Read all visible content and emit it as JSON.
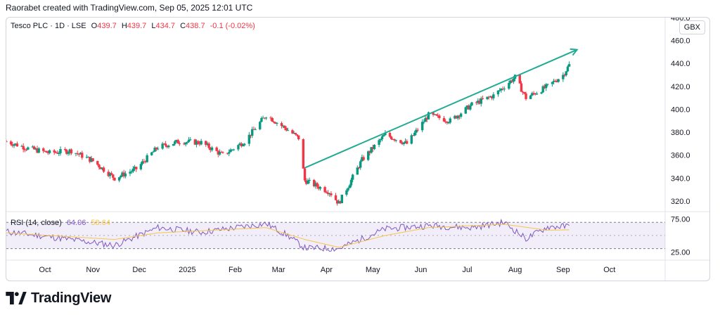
{
  "header": {
    "attribution": "Raorabet created with TradingView.com, Sep 05, 2025 12:01 UTC"
  },
  "legend": {
    "symbol": "Tesco PLC · 1D · LSE",
    "open_label": "O",
    "open": "439.7",
    "high_label": "H",
    "high": "439.7",
    "low_label": "L",
    "low": "434.7",
    "close_label": "C",
    "close": "438.7",
    "change": "-0.1 (-0.02%)"
  },
  "currency": "GBX",
  "rsi_legend": {
    "label": "RSI (14, close)",
    "rsi_value": "64.06",
    "ma_value": "58.64"
  },
  "footer": {
    "brand": "TradingView"
  },
  "colors": {
    "up": "#089981",
    "down": "#f23645",
    "trend": "#22ab94",
    "rsi": "#7e57c2",
    "rsi_ma": "#f7c548",
    "rsi_band": "#7e57c2"
  },
  "chart_data": [
    {
      "type": "candlestick",
      "title": "Tesco PLC · 1D · LSE",
      "x_tick_labels": [
        "Oct",
        "Nov",
        "Dec",
        "2025",
        "Feb",
        "Mar",
        "Apr",
        "May",
        "Jun",
        "Jul",
        "Aug",
        "Sep",
        "Oct"
      ],
      "y_tick_labels": [
        "320.0",
        "340.0",
        "360.0",
        "380.0",
        "400.0",
        "420.0",
        "440.0",
        "460.0",
        "480.0"
      ],
      "ylim": [
        312,
        480
      ],
      "grid": false,
      "close_series": [
        {
          "date": "2024-09-06",
          "close": 372
        },
        {
          "date": "2024-09-20",
          "close": 366
        },
        {
          "date": "2024-10-04",
          "close": 362
        },
        {
          "date": "2024-10-18",
          "close": 364
        },
        {
          "date": "2024-11-01",
          "close": 355
        },
        {
          "date": "2024-11-15",
          "close": 340
        },
        {
          "date": "2024-11-29",
          "close": 348
        },
        {
          "date": "2024-12-13",
          "close": 367
        },
        {
          "date": "2024-12-27",
          "close": 372
        },
        {
          "date": "2025-01-10",
          "close": 371
        },
        {
          "date": "2025-01-24",
          "close": 360
        },
        {
          "date": "2025-02-07",
          "close": 372
        },
        {
          "date": "2025-02-21",
          "close": 395
        },
        {
          "date": "2025-03-07",
          "close": 382
        },
        {
          "date": "2025-03-14",
          "close": 375
        },
        {
          "date": "2025-03-18",
          "close": 338
        },
        {
          "date": "2025-04-03",
          "close": 328
        },
        {
          "date": "2025-04-09",
          "close": 318
        },
        {
          "date": "2025-04-24",
          "close": 356
        },
        {
          "date": "2025-05-09",
          "close": 378
        },
        {
          "date": "2025-05-23",
          "close": 370
        },
        {
          "date": "2025-06-06",
          "close": 395
        },
        {
          "date": "2025-06-20",
          "close": 390
        },
        {
          "date": "2025-07-04",
          "close": 404
        },
        {
          "date": "2025-07-18",
          "close": 412
        },
        {
          "date": "2025-08-01",
          "close": 428
        },
        {
          "date": "2025-08-08",
          "close": 410
        },
        {
          "date": "2025-08-22",
          "close": 420
        },
        {
          "date": "2025-09-01",
          "close": 430
        },
        {
          "date": "2025-09-05",
          "close": 438.7
        }
      ],
      "annotation": {
        "type": "trend-arrow",
        "from": {
          "date": "2025-03-18",
          "value": 349
        },
        "to": {
          "date": "2025-09-10",
          "value": 452
        }
      }
    },
    {
      "type": "line",
      "title": "RSI (14, close)",
      "y_tick_labels": [
        "25.00",
        "75.00"
      ],
      "ylim": [
        20,
        82
      ],
      "band": [
        30,
        70
      ],
      "series": [
        {
          "name": "RSI",
          "points": [
            {
              "date": "2024-09-06",
              "value": 56
            },
            {
              "date": "2024-10-04",
              "value": 48
            },
            {
              "date": "2024-11-15",
              "value": 35
            },
            {
              "date": "2024-12-13",
              "value": 62
            },
            {
              "date": "2025-01-10",
              "value": 55
            },
            {
              "date": "2025-02-21",
              "value": 68
            },
            {
              "date": "2025-03-07",
              "value": 50
            },
            {
              "date": "2025-03-18",
              "value": 31
            },
            {
              "date": "2025-04-09",
              "value": 30
            },
            {
              "date": "2025-05-09",
              "value": 60
            },
            {
              "date": "2025-06-06",
              "value": 65
            },
            {
              "date": "2025-07-04",
              "value": 62
            },
            {
              "date": "2025-07-25",
              "value": 70
            },
            {
              "date": "2025-08-08",
              "value": 45
            },
            {
              "date": "2025-08-22",
              "value": 63
            },
            {
              "date": "2025-09-05",
              "value": 64.06
            }
          ]
        },
        {
          "name": "RSI MA",
          "points": [
            {
              "date": "2024-09-06",
              "value": 54
            },
            {
              "date": "2024-11-15",
              "value": 44
            },
            {
              "date": "2024-12-13",
              "value": 54
            },
            {
              "date": "2025-02-21",
              "value": 62
            },
            {
              "date": "2025-03-18",
              "value": 44
            },
            {
              "date": "2025-04-09",
              "value": 32
            },
            {
              "date": "2025-05-09",
              "value": 50
            },
            {
              "date": "2025-06-06",
              "value": 62
            },
            {
              "date": "2025-07-25",
              "value": 67
            },
            {
              "date": "2025-08-22",
              "value": 58
            },
            {
              "date": "2025-09-05",
              "value": 58.64
            }
          ]
        }
      ]
    }
  ]
}
